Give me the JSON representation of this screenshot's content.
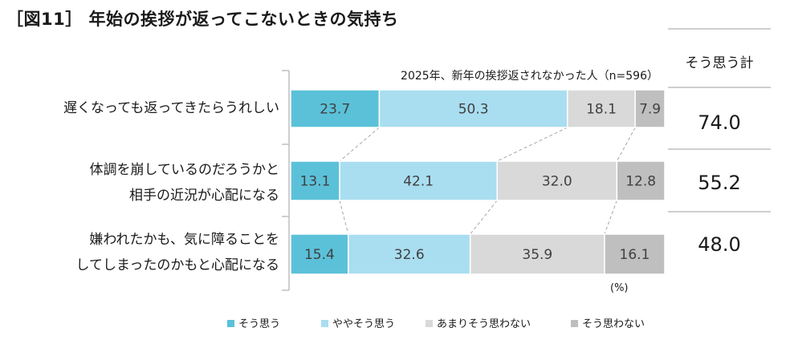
{
  "title": "［図11］ 年始の挨拶が返ってこないときの気持ち",
  "subtitle": "2025年、新年の挨拶返されなかった人（n=596）",
  "sum_header": "そう思う計",
  "unit_label": "(%)",
  "colors": {
    "series": [
      "#5bc1d9",
      "#a9def0",
      "#d9d9d9",
      "#bfbfbf"
    ],
    "separator": "#bfbfbf",
    "connector": "#a6a6a6"
  },
  "chart_data": {
    "type": "bar",
    "orientation": "horizontal",
    "stacked": true,
    "percent_scale": [
      0,
      100
    ],
    "categories": [
      "遅くなっても返ってきたらうれしい",
      "体調を崩しているのだろうかと\n相手の近況が心配になる",
      "嫌われたかも、気に障ることを\nしてしまったのかもと心配になる"
    ],
    "series": [
      {
        "name": "そう思う",
        "values": [
          23.7,
          13.1,
          15.4
        ]
      },
      {
        "name": "ややそう思う",
        "values": [
          50.3,
          42.1,
          32.6
        ]
      },
      {
        "name": "あまりそう思わない",
        "values": [
          18.1,
          32.0,
          35.9
        ]
      },
      {
        "name": "そう思わない",
        "values": [
          7.9,
          12.8,
          16.1
        ]
      }
    ],
    "data_labels": [
      [
        "23.7",
        "50.3",
        "18.1",
        "7.9"
      ],
      [
        "13.1",
        "42.1",
        "32.0",
        "12.8"
      ],
      [
        "15.4",
        "32.6",
        "35.9",
        "16.1"
      ]
    ],
    "sum_values": [
      "74.0",
      "55.2",
      "48.0"
    ],
    "legend_position": "bottom"
  }
}
